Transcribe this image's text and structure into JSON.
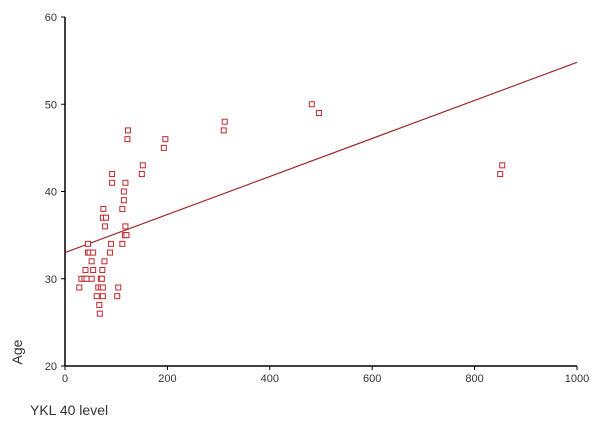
{
  "chart_data": {
    "type": "scatter",
    "xlabel": "YKL 40 level",
    "ylabel": "Age",
    "xlim": [
      0,
      1000
    ],
    "ylim": [
      20,
      60
    ],
    "xticks": [
      0,
      200,
      400,
      600,
      800,
      1000
    ],
    "yticks": [
      20,
      30,
      40,
      50,
      60
    ],
    "grid": false,
    "colors": {
      "points": "#c0272d",
      "fit_line": "#a02828",
      "axes": "#000000"
    },
    "fit_line": {
      "x": [
        0,
        1000
      ],
      "y": [
        33.0,
        54.8
      ]
    },
    "points": [
      [
        28,
        29
      ],
      [
        32,
        30
      ],
      [
        38,
        30
      ],
      [
        40,
        31
      ],
      [
        42,
        30
      ],
      [
        45,
        33
      ],
      [
        45,
        34
      ],
      [
        48,
        33
      ],
      [
        52,
        32
      ],
      [
        52,
        30
      ],
      [
        55,
        31
      ],
      [
        55,
        33
      ],
      [
        62,
        28
      ],
      [
        65,
        29
      ],
      [
        67,
        27
      ],
      [
        68,
        26
      ],
      [
        70,
        29
      ],
      [
        70,
        30
      ],
      [
        72,
        30
      ],
      [
        73,
        31
      ],
      [
        74,
        28
      ],
      [
        74,
        29
      ],
      [
        74,
        37
      ],
      [
        75,
        38
      ],
      [
        77,
        32
      ],
      [
        78,
        36
      ],
      [
        80,
        37
      ],
      [
        88,
        33
      ],
      [
        90,
        34
      ],
      [
        92,
        41
      ],
      [
        92,
        42
      ],
      [
        102,
        28
      ],
      [
        104,
        29
      ],
      [
        112,
        34
      ],
      [
        112,
        38
      ],
      [
        115,
        39
      ],
      [
        115,
        40
      ],
      [
        117,
        35
      ],
      [
        118,
        36
      ],
      [
        118,
        41
      ],
      [
        120,
        35
      ],
      [
        122,
        46
      ],
      [
        123,
        47
      ],
      [
        150,
        42
      ],
      [
        152,
        43
      ],
      [
        193,
        45
      ],
      [
        196,
        46
      ],
      [
        310,
        47
      ],
      [
        312,
        48
      ],
      [
        482,
        50
      ],
      [
        496,
        49
      ],
      [
        850,
        42
      ],
      [
        854,
        43
      ]
    ]
  }
}
